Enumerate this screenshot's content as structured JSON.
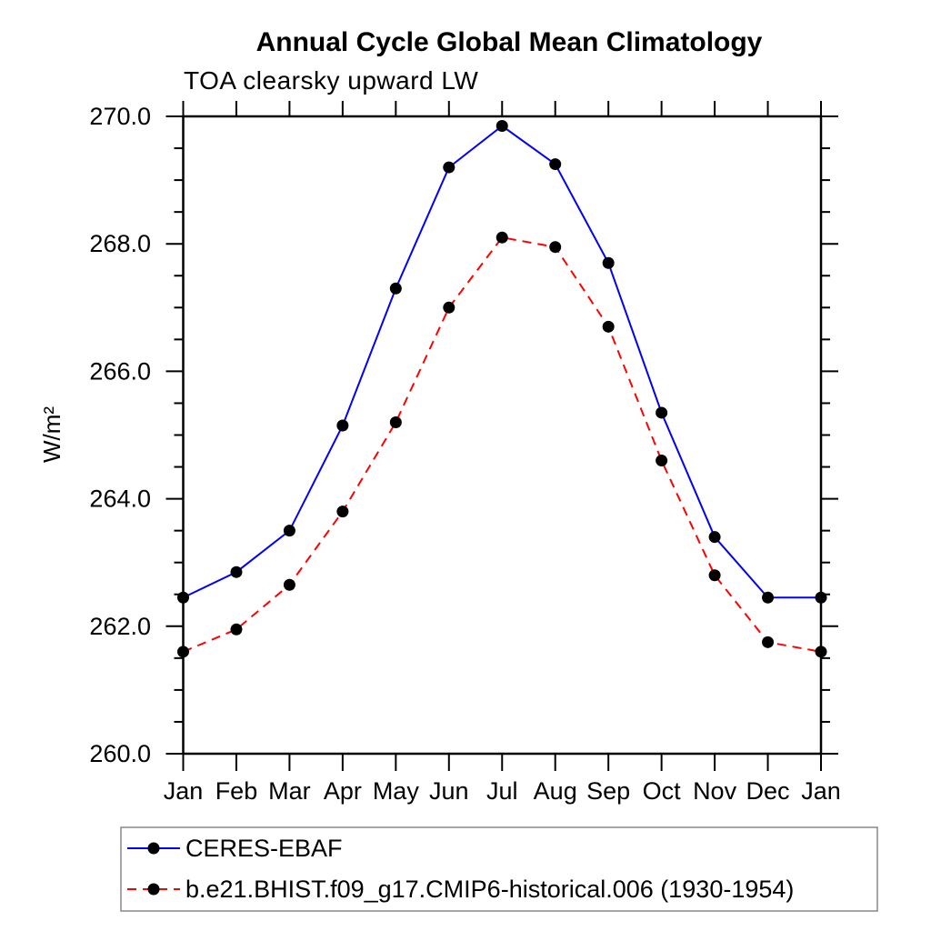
{
  "chart_data": {
    "type": "line",
    "title": "Annual Cycle Global Mean Climatology",
    "subtitle": "TOA clearsky upward LW",
    "ylabel": "W/m²",
    "categories": [
      "Jan",
      "Feb",
      "Mar",
      "Apr",
      "May",
      "Jun",
      "Jul",
      "Aug",
      "Sep",
      "Oct",
      "Nov",
      "Dec",
      "Jan"
    ],
    "ylim": [
      260.0,
      270.0
    ],
    "ytick_major_step": 2.0,
    "ytick_minor_step": 0.5,
    "ytick_labels": [
      "260.0",
      "262.0",
      "264.0",
      "266.0",
      "268.0",
      "270.0"
    ],
    "grid": false,
    "legend_position": "bottom-left-box",
    "axis_color": "#000000",
    "series": [
      {
        "name": "CERES-EBAF",
        "color": "#0000ff",
        "line_style": "solid",
        "marker": "filled-circle",
        "marker_color": "#000000",
        "values": [
          262.45,
          262.85,
          263.5,
          265.15,
          267.3,
          269.2,
          269.85,
          269.25,
          267.7,
          265.35,
          263.4,
          262.45,
          262.45
        ]
      },
      {
        "name": "b.e21.BHIST.f09_g17.CMIP6-historical.006 (1930-1954)",
        "color": "#ff0000",
        "line_style": "dashed",
        "marker": "filled-circle",
        "marker_color": "#000000",
        "values": [
          261.6,
          261.95,
          262.65,
          263.8,
          265.2,
          267.0,
          268.1,
          267.95,
          266.7,
          264.6,
          262.8,
          261.75,
          261.6
        ]
      }
    ]
  }
}
